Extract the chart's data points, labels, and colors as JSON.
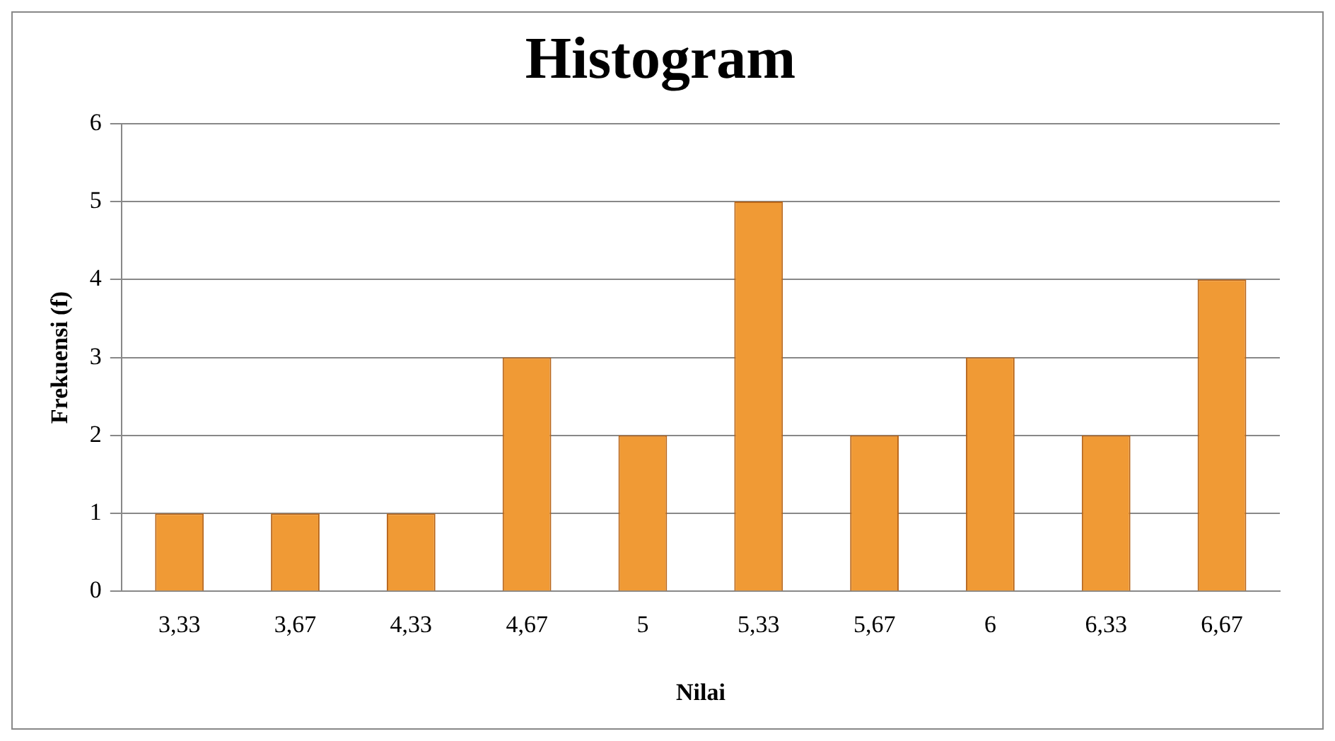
{
  "chart_data": {
    "type": "bar",
    "title": "Histogram",
    "xlabel": "Nilai",
    "ylabel": "Frekuensi (f)",
    "categories": [
      "3,33",
      "3,67",
      "4,33",
      "4,67",
      "5",
      "5,33",
      "5,67",
      "6",
      "6,33",
      "6,67"
    ],
    "values": [
      1,
      1,
      1,
      3,
      2,
      5,
      2,
      3,
      2,
      4
    ],
    "color": "#f09a35",
    "ylim": [
      0,
      6
    ],
    "yticks": [
      0,
      1,
      2,
      3,
      4,
      5,
      6
    ],
    "grid": "y",
    "legend": false
  }
}
